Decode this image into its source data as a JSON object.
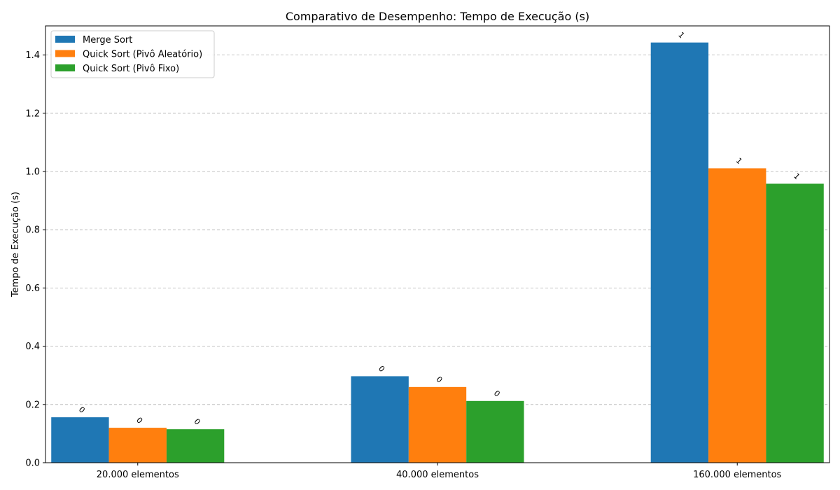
{
  "chart_data": {
    "type": "bar",
    "title": "Comparativo de Desempenho: Tempo de Execução (s)",
    "xlabel": "",
    "ylabel": "Tempo de Execução (s)",
    "categories": [
      "20.000 elementos",
      "40.000 elementos",
      "160.000 elementos"
    ],
    "ylim": [
      0,
      1.5
    ],
    "yticks": [
      "0.0",
      "0.2",
      "0.4",
      "0.6",
      "0.8",
      "1.0",
      "1.2",
      "1.4"
    ],
    "grid": "y-dashed",
    "legend_position": "top-left",
    "series": [
      {
        "name": "Merge Sort",
        "color": "#1f77b4",
        "values": [
          0.156,
          0.297,
          1.443
        ],
        "labels": [
          "0",
          "0",
          "1"
        ]
      },
      {
        "name": "Quick Sort (Pivô Aleatório)",
        "color": "#ff7f0e",
        "values": [
          0.12,
          0.26,
          1.011
        ],
        "labels": [
          "0",
          "0",
          "1"
        ]
      },
      {
        "name": "Quick Sort (Pivô Fixo)",
        "color": "#2ca02c",
        "values": [
          0.115,
          0.212,
          0.958
        ],
        "labels": [
          "0",
          "0",
          "1"
        ]
      }
    ]
  }
}
